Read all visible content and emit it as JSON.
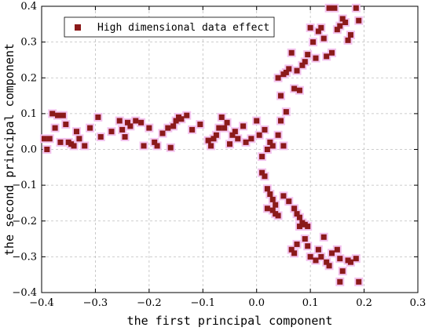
{
  "chart_data": {
    "type": "scatter",
    "xlabel": "the first principal component",
    "ylabel": "the second principal component",
    "xlim": [
      -0.4,
      0.3
    ],
    "ylim": [
      -0.4,
      0.4
    ],
    "xticks": [
      -0.4,
      -0.3,
      -0.2,
      -0.1,
      0.0,
      0.1,
      0.2,
      0.3
    ],
    "yticks": [
      -0.4,
      -0.3,
      -0.2,
      -0.1,
      0.0,
      0.1,
      0.2,
      0.3,
      0.4
    ],
    "xtick_labels": [
      "−0.4",
      "−0.3",
      "−0.2",
      "−0.1",
      "0.0",
      "0.1",
      "0.2",
      "0.3"
    ],
    "ytick_labels": [
      "−0.4",
      "−0.3",
      "−0.2",
      "−0.1",
      "0.0",
      "0.1",
      "0.2",
      "0.3",
      "0.4"
    ],
    "grid": true,
    "legend_position": "top-left",
    "series": [
      {
        "name": "High dimensional data effect",
        "color": "#8b1a1a",
        "halo_color": "#f3c4ef",
        "marker": "square",
        "points": [
          [
            -0.395,
            0.03
          ],
          [
            -0.39,
            0.0
          ],
          [
            -0.385,
            0.03
          ],
          [
            -0.38,
            0.1
          ],
          [
            -0.375,
            0.06
          ],
          [
            -0.37,
            0.095
          ],
          [
            -0.365,
            0.02
          ],
          [
            -0.36,
            0.095
          ],
          [
            -0.355,
            0.07
          ],
          [
            -0.35,
            0.02
          ],
          [
            -0.345,
            0.015
          ],
          [
            -0.34,
            0.01
          ],
          [
            -0.335,
            0.05
          ],
          [
            -0.33,
            0.03
          ],
          [
            -0.32,
            0.01
          ],
          [
            -0.31,
            0.06
          ],
          [
            -0.295,
            0.09
          ],
          [
            -0.29,
            0.035
          ],
          [
            -0.27,
            0.05
          ],
          [
            -0.255,
            0.08
          ],
          [
            -0.25,
            0.055
          ],
          [
            -0.245,
            0.035
          ],
          [
            -0.24,
            0.075
          ],
          [
            -0.235,
            0.065
          ],
          [
            -0.225,
            0.08
          ],
          [
            -0.215,
            0.075
          ],
          [
            -0.21,
            0.01
          ],
          [
            -0.2,
            0.06
          ],
          [
            -0.19,
            0.02
          ],
          [
            -0.185,
            0.01
          ],
          [
            -0.175,
            0.045
          ],
          [
            -0.165,
            0.06
          ],
          [
            -0.16,
            0.005
          ],
          [
            -0.155,
            0.065
          ],
          [
            -0.15,
            0.08
          ],
          [
            -0.145,
            0.09
          ],
          [
            -0.14,
            0.085
          ],
          [
            -0.13,
            0.095
          ],
          [
            -0.12,
            0.055
          ],
          [
            -0.105,
            0.07
          ],
          [
            -0.09,
            0.025
          ],
          [
            -0.085,
            0.01
          ],
          [
            -0.08,
            0.03
          ],
          [
            -0.075,
            0.04
          ],
          [
            -0.07,
            0.06
          ],
          [
            -0.065,
            0.09
          ],
          [
            -0.06,
            0.06
          ],
          [
            -0.055,
            0.075
          ],
          [
            -0.05,
            0.015
          ],
          [
            -0.045,
            0.04
          ],
          [
            -0.04,
            0.05
          ],
          [
            -0.035,
            0.03
          ],
          [
            -0.025,
            0.065
          ],
          [
            -0.02,
            0.02
          ],
          [
            -0.01,
            0.03
          ],
          [
            0.0,
            0.08
          ],
          [
            0.005,
            0.04
          ],
          [
            0.01,
            -0.02
          ],
          [
            0.015,
            0.055
          ],
          [
            0.02,
            0.0
          ],
          [
            0.025,
            0.02
          ],
          [
            0.03,
            0.01
          ],
          [
            0.04,
            0.04
          ],
          [
            0.045,
            0.08
          ],
          [
            0.05,
            0.01
          ],
          [
            0.055,
            0.105
          ],
          [
            0.01,
            -0.065
          ],
          [
            0.015,
            -0.075
          ],
          [
            0.02,
            -0.11
          ],
          [
            0.025,
            -0.125
          ],
          [
            0.03,
            -0.14
          ],
          [
            0.035,
            -0.155
          ],
          [
            0.02,
            -0.165
          ],
          [
            0.03,
            -0.17
          ],
          [
            0.035,
            -0.18
          ],
          [
            0.04,
            -0.185
          ],
          [
            0.05,
            -0.13
          ],
          [
            0.06,
            -0.145
          ],
          [
            0.07,
            -0.165
          ],
          [
            0.075,
            -0.18
          ],
          [
            0.08,
            -0.19
          ],
          [
            0.085,
            -0.205
          ],
          [
            0.09,
            -0.21
          ],
          [
            0.095,
            -0.215
          ],
          [
            0.065,
            -0.28
          ],
          [
            0.07,
            -0.29
          ],
          [
            0.075,
            -0.265
          ],
          [
            0.08,
            -0.215
          ],
          [
            0.09,
            -0.25
          ],
          [
            0.095,
            -0.27
          ],
          [
            0.1,
            -0.3
          ],
          [
            0.11,
            -0.31
          ],
          [
            0.115,
            -0.28
          ],
          [
            0.12,
            -0.3
          ],
          [
            0.125,
            -0.245
          ],
          [
            0.13,
            -0.315
          ],
          [
            0.135,
            -0.325
          ],
          [
            0.14,
            -0.29
          ],
          [
            0.15,
            -0.28
          ],
          [
            0.155,
            -0.305
          ],
          [
            0.16,
            -0.34
          ],
          [
            0.17,
            -0.31
          ],
          [
            0.175,
            -0.315
          ],
          [
            0.185,
            -0.305
          ],
          [
            0.19,
            -0.37
          ],
          [
            0.155,
            -0.37
          ],
          [
            0.04,
            0.2
          ],
          [
            0.045,
            0.15
          ],
          [
            0.05,
            0.21
          ],
          [
            0.055,
            0.215
          ],
          [
            0.06,
            0.225
          ],
          [
            0.065,
            0.27
          ],
          [
            0.07,
            0.17
          ],
          [
            0.075,
            0.22
          ],
          [
            0.08,
            0.165
          ],
          [
            0.085,
            0.235
          ],
          [
            0.09,
            0.245
          ],
          [
            0.095,
            0.265
          ],
          [
            0.1,
            0.34
          ],
          [
            0.105,
            0.3
          ],
          [
            0.11,
            0.255
          ],
          [
            0.115,
            0.33
          ],
          [
            0.12,
            0.34
          ],
          [
            0.125,
            0.31
          ],
          [
            0.13,
            0.26
          ],
          [
            0.135,
            0.395
          ],
          [
            0.14,
            0.27
          ],
          [
            0.145,
            0.395
          ],
          [
            0.15,
            0.335
          ],
          [
            0.155,
            0.345
          ],
          [
            0.16,
            0.365
          ],
          [
            0.165,
            0.355
          ],
          [
            0.17,
            0.305
          ],
          [
            0.175,
            0.32
          ],
          [
            0.185,
            0.395
          ],
          [
            0.19,
            0.36
          ]
        ]
      }
    ]
  }
}
